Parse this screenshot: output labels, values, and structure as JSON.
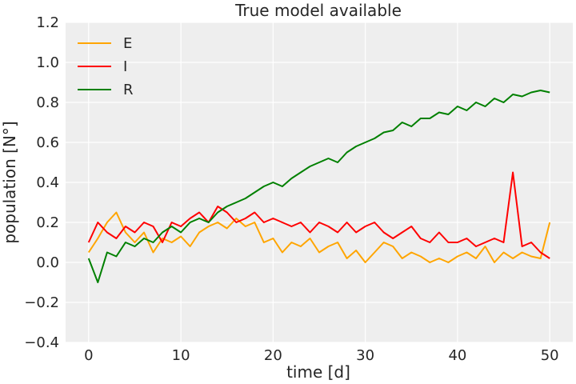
{
  "chart_data": {
    "type": "line",
    "title": "True model available",
    "xlabel": "time [d]",
    "ylabel": "population [N°]",
    "xlim": [
      -2.5,
      52.5
    ],
    "ylim": [
      -0.4,
      1.2
    ],
    "xticks": [
      0,
      10,
      20,
      30,
      40,
      50
    ],
    "yticks": [
      -0.4,
      -0.2,
      0.0,
      0.2,
      0.4,
      0.6,
      0.8,
      1.0,
      1.2
    ],
    "ytick_labels": [
      "−0.4",
      "−0.2",
      "0.0",
      "0.2",
      "0.4",
      "0.6",
      "0.8",
      "1.0",
      "1.2"
    ],
    "grid": true,
    "legend_position": "top-left",
    "x": [
      0,
      1,
      2,
      3,
      4,
      5,
      6,
      7,
      8,
      9,
      10,
      11,
      12,
      13,
      14,
      15,
      16,
      17,
      18,
      19,
      20,
      21,
      22,
      23,
      24,
      25,
      26,
      27,
      28,
      29,
      30,
      31,
      32,
      33,
      34,
      35,
      36,
      37,
      38,
      39,
      40,
      41,
      42,
      43,
      44,
      45,
      46,
      47,
      48,
      49,
      50
    ],
    "series": [
      {
        "name": "E",
        "color": "#FFA500",
        "values": [
          0.05,
          0.12,
          0.2,
          0.25,
          0.15,
          0.1,
          0.15,
          0.05,
          0.12,
          0.1,
          0.13,
          0.08,
          0.15,
          0.18,
          0.2,
          0.17,
          0.22,
          0.18,
          0.2,
          0.1,
          0.12,
          0.05,
          0.1,
          0.08,
          0.12,
          0.05,
          0.08,
          0.1,
          0.02,
          0.06,
          0.0,
          0.05,
          0.1,
          0.08,
          0.02,
          0.05,
          0.03,
          0.0,
          0.02,
          0.0,
          0.03,
          0.05,
          0.02,
          0.08,
          0.0,
          0.05,
          0.02,
          0.05,
          0.03,
          0.02,
          0.2
        ]
      },
      {
        "name": "I",
        "color": "#FF0000",
        "values": [
          0.1,
          0.2,
          0.15,
          0.12,
          0.18,
          0.15,
          0.2,
          0.18,
          0.1,
          0.2,
          0.18,
          0.22,
          0.25,
          0.2,
          0.28,
          0.25,
          0.2,
          0.22,
          0.25,
          0.2,
          0.22,
          0.2,
          0.18,
          0.2,
          0.15,
          0.2,
          0.18,
          0.15,
          0.2,
          0.15,
          0.18,
          0.2,
          0.15,
          0.12,
          0.15,
          0.18,
          0.12,
          0.1,
          0.15,
          0.1,
          0.1,
          0.12,
          0.08,
          0.1,
          0.12,
          0.1,
          0.45,
          0.08,
          0.1,
          0.05,
          0.02
        ]
      },
      {
        "name": "R",
        "color": "#008000",
        "values": [
          0.02,
          -0.1,
          0.05,
          0.03,
          0.1,
          0.08,
          0.12,
          0.1,
          0.15,
          0.18,
          0.15,
          0.2,
          0.22,
          0.2,
          0.25,
          0.28,
          0.3,
          0.32,
          0.35,
          0.38,
          0.4,
          0.38,
          0.42,
          0.45,
          0.48,
          0.5,
          0.52,
          0.5,
          0.55,
          0.58,
          0.6,
          0.62,
          0.65,
          0.66,
          0.7,
          0.68,
          0.72,
          0.72,
          0.75,
          0.74,
          0.78,
          0.76,
          0.8,
          0.78,
          0.82,
          0.8,
          0.84,
          0.83,
          0.85,
          0.86,
          0.85
        ]
      }
    ]
  }
}
